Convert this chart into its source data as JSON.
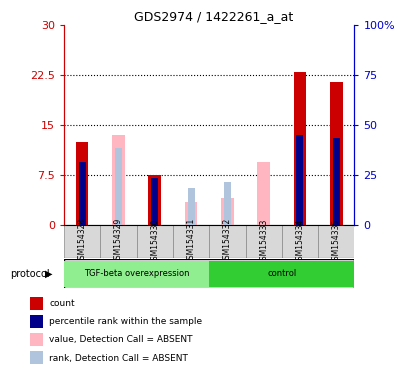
{
  "title": "GDS2974 / 1422261_a_at",
  "samples": [
    "GSM154328",
    "GSM154329",
    "GSM154330",
    "GSM154331",
    "GSM154332",
    "GSM154333",
    "GSM154334",
    "GSM154335"
  ],
  "red_bars": [
    12.5,
    0,
    7.5,
    0,
    0,
    0,
    23.0,
    21.5
  ],
  "blue_bars": [
    9.5,
    0,
    7.0,
    0,
    0,
    0,
    13.5,
    13.0
  ],
  "pink_bars": [
    0,
    13.5,
    0,
    3.5,
    4.0,
    9.5,
    0,
    0
  ],
  "lightblue_bars": [
    0,
    11.5,
    0,
    5.5,
    6.5,
    0,
    0,
    0
  ],
  "ylim_left": [
    0,
    30
  ],
  "ylim_right": [
    0,
    100
  ],
  "yticks_left": [
    0,
    7.5,
    15,
    22.5,
    30
  ],
  "ytick_labels_left": [
    "0",
    "7.5",
    "15",
    "22.5",
    "30"
  ],
  "yticks_right": [
    0,
    25,
    50,
    75,
    100
  ],
  "ytick_labels_right": [
    "0",
    "25",
    "50",
    "75",
    "100%"
  ],
  "bar_width": 0.35,
  "protocol_label": "protocol",
  "legend_items": [
    {
      "label": "count",
      "color": "#CC0000"
    },
    {
      "label": "percentile rank within the sample",
      "color": "#00008B"
    },
    {
      "label": "value, Detection Call = ABSENT",
      "color": "#FFB6C1"
    },
    {
      "label": "rank, Detection Call = ABSENT",
      "color": "#B0C4DE"
    }
  ],
  "left_axis_color": "#CC0000",
  "right_axis_color": "#0000CC",
  "bg_color": "#d8d8d8",
  "tgf_color": "#90EE90",
  "ctrl_color": "#32CD32",
  "gridlines": [
    7.5,
    15,
    22.5
  ],
  "tgf_label": "TGF-beta overexpression",
  "ctrl_label": "control"
}
